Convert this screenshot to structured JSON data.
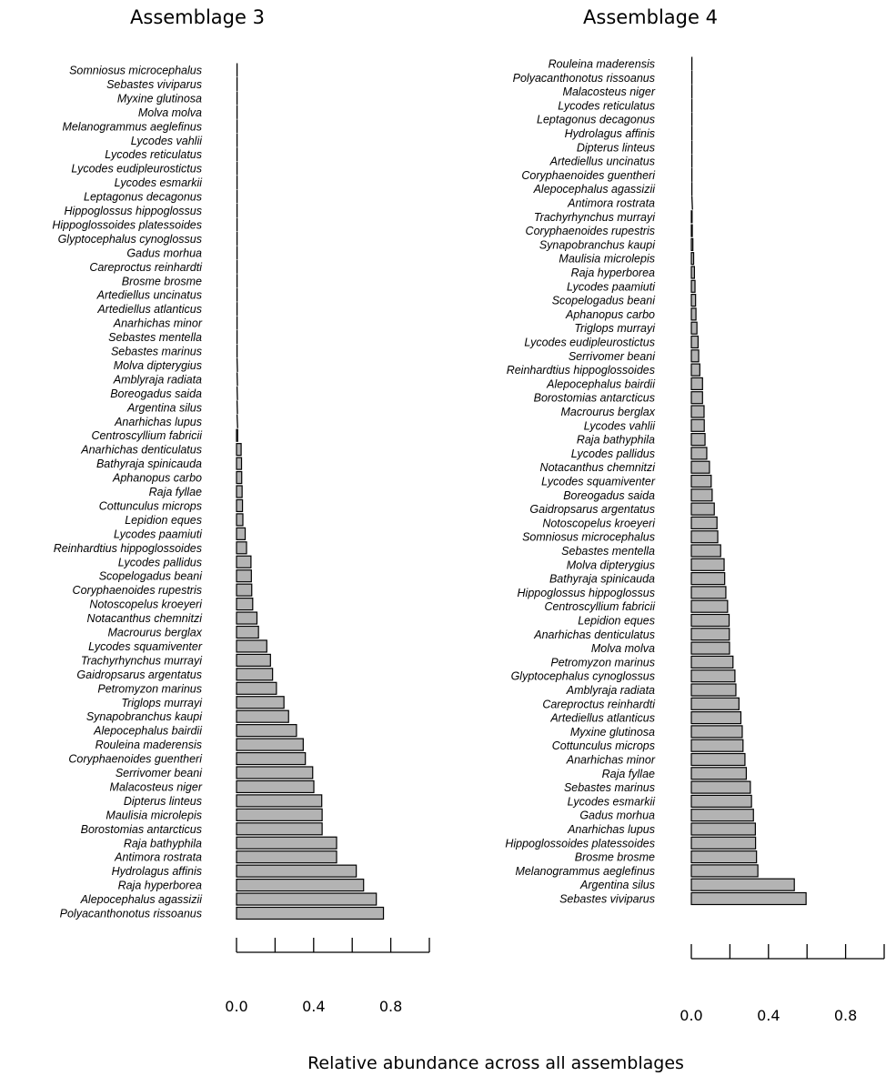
{
  "x_axis_label": "Relative abundance across all assemblages",
  "colors": {
    "bar_fill": "#b3b3b3",
    "bar_stroke": "#000000"
  },
  "chart_data": [
    {
      "type": "bar",
      "orientation": "horizontal",
      "title": "Assemblage 3",
      "xlabel": "Relative abundance across all assemblages",
      "xlim": [
        0,
        1.0
      ],
      "xticks": [
        0,
        0.2,
        0.4,
        0.6,
        0.8,
        1.0
      ],
      "xtick_labels": [
        "0.0",
        "0.4",
        "0.8"
      ],
      "categories": [
        "Somniosus microcephalus",
        "Sebastes viviparus",
        "Myxine glutinosa",
        "Molva molva",
        "Melanogrammus aeglefinus",
        "Lycodes vahlii",
        "Lycodes reticulatus",
        "Lycodes eudipleurostictus",
        "Lycodes esmarkii",
        "Leptagonus decagonus",
        "Hippoglossus hippoglossus",
        "Hippoglossoides platessoides",
        "Glyptocephalus cynoglossus",
        "Gadus morhua",
        "Careproctus reinhardti",
        "Brosme brosme",
        "Artediellus uncinatus",
        "Artediellus atlanticus",
        "Anarhichas minor",
        "Sebastes mentella",
        "Sebastes marinus",
        "Molva dipterygius",
        "Amblyraja radiata",
        "Boreogadus saida",
        "Argentina silus",
        "Anarhichas lupus",
        "Centroscyllium fabricii",
        "Anarhichas denticulatus",
        "Bathyraja spinicauda",
        "Aphanopus carbo",
        "Raja fyllae",
        "Cottunculus microps",
        "Lepidion eques",
        "Lycodes paamiuti",
        "Reinhardtius hippoglossoides",
        "Lycodes pallidus",
        "Scopelogadus beani",
        "Coryphaenoides rupestris",
        "Notoscopelus kroeyeri",
        "Notacanthus chemnitzi",
        "Macrourus berglax",
        "Lycodes squamiventer",
        "Trachyrhynchus murrayi",
        "Gaidropsarus argentatus",
        "Petromyzon marinus",
        "Triglops murrayi",
        "Synapobranchus kaupi",
        "Alepocephalus bairdii",
        "Rouleina maderensis",
        "Coryphaenoides guentheri",
        "Serrivomer beani",
        "Malacosteus niger",
        "Dipterus linteus",
        "Maulisia microlepis",
        "Borostomias antarcticus",
        "Raja bathyphila",
        "Antimora rostrata",
        "Hydrolagus affinis",
        "Raja hyperborea",
        "Alepocephalus agassizii",
        "Polyacanthonotus rissoanus"
      ],
      "values": [
        0,
        0,
        0,
        0,
        0,
        0,
        0,
        0,
        0,
        0,
        0,
        0,
        0,
        0,
        0,
        0,
        0,
        0,
        0,
        0,
        0,
        0.002,
        0.002,
        0.002,
        0.002,
        0.003,
        0.006,
        0.024,
        0.026,
        0.027,
        0.029,
        0.031,
        0.033,
        0.045,
        0.052,
        0.075,
        0.077,
        0.079,
        0.084,
        0.106,
        0.114,
        0.157,
        0.176,
        0.187,
        0.207,
        0.246,
        0.27,
        0.311,
        0.346,
        0.357,
        0.395,
        0.401,
        0.442,
        0.444,
        0.444,
        0.519,
        0.519,
        0.621,
        0.659,
        0.725,
        0.762
      ]
    },
    {
      "type": "bar",
      "orientation": "horizontal",
      "title": "Assemblage 4",
      "xlabel": "Relative abundance across all assemblages",
      "xlim": [
        0,
        1.0
      ],
      "xticks": [
        0,
        0.2,
        0.4,
        0.6,
        0.8,
        1.0
      ],
      "xtick_labels": [
        "0.0",
        "0.4",
        "0.8"
      ],
      "categories": [
        "Rouleina maderensis",
        "Polyacanthonotus rissoanus",
        "Malacosteus niger",
        "Lycodes reticulatus",
        "Leptagonus decagonus",
        "Hydrolagus affinis",
        "Dipterus linteus",
        "Artediellus uncinatus",
        "Coryphaenoides guentheri",
        "Alepocephalus agassizii",
        "Antimora rostrata",
        "Trachyrhynchus murrayi",
        "Coryphaenoides rupestris",
        "Synapobranchus kaupi",
        "Maulisia microlepis",
        "Raja hyperborea",
        "Lycodes paamiuti",
        "Scopelogadus beani",
        "Aphanopus carbo",
        "Triglops murrayi",
        "Lycodes eudipleurostictus",
        "Serrivomer beani",
        "Reinhardtius hippoglossoides",
        "Alepocephalus bairdii",
        "Borostomias antarcticus",
        "Macrourus berglax",
        "Lycodes vahlii",
        "Raja bathyphila",
        "Lycodes pallidus",
        "Notacanthus chemnitzi",
        "Lycodes squamiventer",
        "Boreogadus saida",
        "Gaidropsarus argentatus",
        "Notoscopelus kroeyeri",
        "Somniosus microcephalus",
        "Sebastes mentella",
        "Molva dipterygius",
        "Bathyraja spinicauda",
        "Hippoglossus hippoglossus",
        "Centroscyllium fabricii",
        "Lepidion eques",
        "Anarhichas denticulatus",
        "Molva molva",
        "Petromyzon marinus",
        "Glyptocephalus cynoglossus",
        "Amblyraja radiata",
        "Careproctus reinhardti",
        "Artediellus atlanticus",
        "Myxine glutinosa",
        "Cottunculus microps",
        "Anarhichas minor",
        "Raja fyllae",
        "Sebastes marinus",
        "Lycodes esmarkii",
        "Gadus morhua",
        "Anarhichas lupus",
        "Hippoglossoides platessoides",
        "Brosme brosme",
        "Melanogrammus aeglefinus",
        "Argentina silus",
        "Sebastes viviparus"
      ],
      "values": [
        0,
        0,
        0,
        0,
        0,
        0,
        0,
        0,
        0,
        0,
        0.003,
        0.004,
        0.005,
        0.008,
        0.012,
        0.016,
        0.019,
        0.022,
        0.024,
        0.029,
        0.035,
        0.038,
        0.044,
        0.058,
        0.058,
        0.066,
        0.067,
        0.071,
        0.08,
        0.094,
        0.103,
        0.108,
        0.119,
        0.133,
        0.137,
        0.152,
        0.17,
        0.173,
        0.179,
        0.188,
        0.196,
        0.197,
        0.198,
        0.216,
        0.226,
        0.231,
        0.247,
        0.257,
        0.264,
        0.268,
        0.278,
        0.285,
        0.306,
        0.312,
        0.322,
        0.332,
        0.333,
        0.338,
        0.345,
        0.534,
        0.595
      ]
    }
  ]
}
